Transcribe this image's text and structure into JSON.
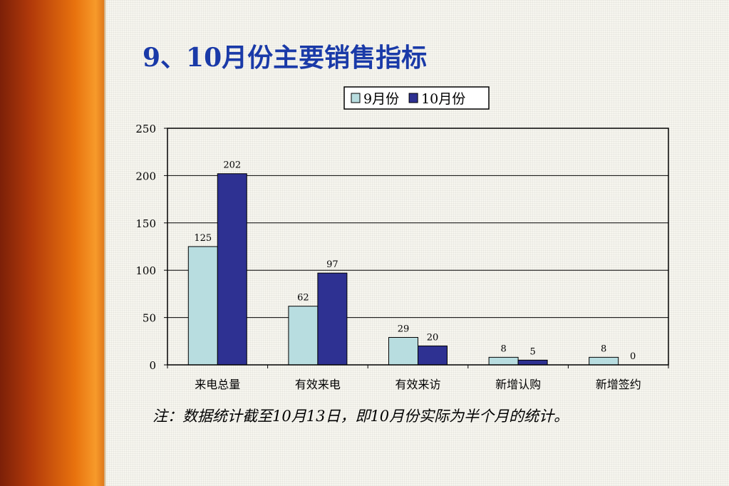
{
  "title": "9、10月份主要销售指标",
  "note": "注：数据统计截至10月13日，即10月份实际为半个月的统计。",
  "chart_data": {
    "type": "bar",
    "categories": [
      "来电总量",
      "有效来电",
      "有效来访",
      "新增认购",
      "新增签约"
    ],
    "series": [
      {
        "name": "9月份",
        "values": [
          125,
          62,
          29,
          8,
          8
        ],
        "color": "#b8dde0"
      },
      {
        "name": "10月份",
        "values": [
          202,
          97,
          20,
          5,
          0
        ],
        "color": "#2e3192"
      }
    ],
    "ylim": [
      0,
      250
    ],
    "yticks": [
      0,
      50,
      100,
      150,
      200,
      250
    ],
    "grid": true,
    "legend_position": "top",
    "data_labels": true
  }
}
